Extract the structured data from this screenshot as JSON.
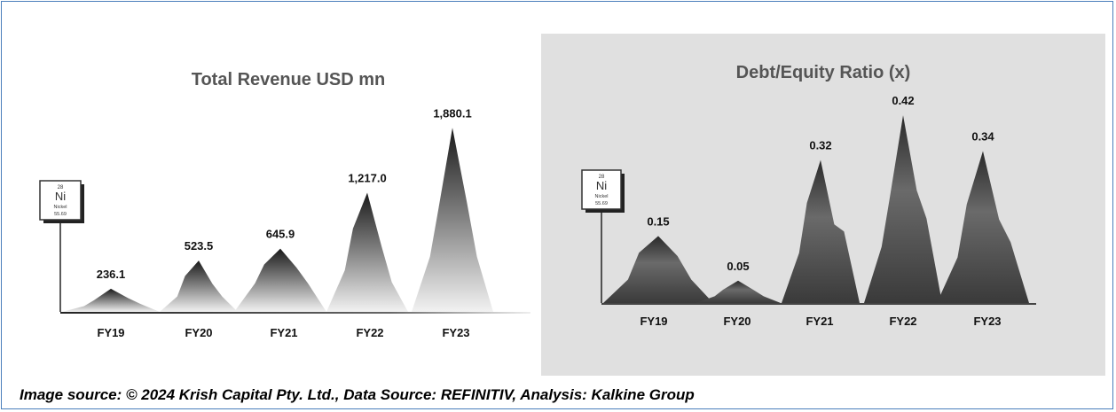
{
  "caption": "Image source: © 2024 Krish Capital Pty. Ltd., Data Source: REFINITIV, Analysis: Kalkine Group",
  "element": {
    "number": "28",
    "symbol": "Ni",
    "name": "Nickel",
    "mass": "55.69"
  },
  "colors": {
    "panel_bg": "#e0e0e0",
    "border": "#4a7ebb",
    "peak_dark": "#1a1a1a"
  },
  "chart_data": [
    {
      "type": "area",
      "title": "Total Revenue USD mn",
      "categories": [
        "FY19",
        "FY20",
        "FY21",
        "FY22",
        "FY23"
      ],
      "values": [
        236.1,
        523.5,
        645.9,
        1217.0,
        1880.1
      ],
      "value_labels": [
        "236.1",
        "523.5",
        "645.9",
        "1,217.0",
        "1,880.1"
      ],
      "ylim": [
        0,
        2100
      ],
      "grid": false
    },
    {
      "type": "area",
      "title": "Debt/Equity Ratio (x)",
      "categories": [
        "FY19",
        "FY20",
        "FY21",
        "FY22",
        "FY23"
      ],
      "values": [
        0.15,
        0.05,
        0.32,
        0.42,
        0.34
      ],
      "value_labels": [
        "0.15",
        "0.05",
        "0.32",
        "0.42",
        "0.34"
      ],
      "ylim": [
        0,
        0.46
      ],
      "grid": false
    }
  ]
}
